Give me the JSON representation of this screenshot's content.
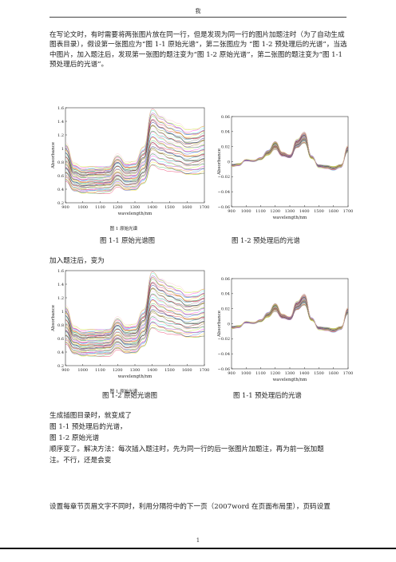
{
  "header": {
    "text": "我"
  },
  "intro": "在写论文时，有时需要将两张图片放在同一行，但是发现为同一行的图片加题注时（为了自动生成图表目录），假设第一张图应为“图 1-1 原始光谱”，第二张图应为 “图 1-2 预处理后的光谱”，当选中图片，加入题注后，发现第一张图的题注变为“图 1-2 原始光谱”，第二张图的题注变为“图 1-1 预处理后的光谱”。",
  "fig1": {
    "left_caption": "图 1-1 原始光谱图",
    "right_caption": "图 1-2 预处理后的光谱",
    "left_inner_caption": "图 1   原始光谱"
  },
  "after_label": "加入题注后，变为",
  "fig2": {
    "left_caption": "图 1-2 原始光谱图",
    "right_caption": "图 1-1 预处理后的光谱",
    "left_inner_caption": "图 1   原始光谱"
  },
  "list": {
    "line1": "生成插图目录时，就变成了",
    "line2": "图 1-1 预处理后的光谱，",
    "line3": "图 1-2 原始光谱",
    "line4": "顺序变了。解决方法：每次插入题注时，先为同一行的后一张图片加题注，再为前一张加题",
    "line5": "注。不行，还是会变"
  },
  "bottom_para": "设置每章节页眉文字不同时，利用分隔符中的下一页（2007word 在页面布局里），页码设置",
  "footer": {
    "page_number": "1"
  },
  "chart_data": [
    {
      "type": "line",
      "title": "",
      "xlabel": "wavelength/nm",
      "ylabel": "Absorbance",
      "xlim": [
        900,
        1700
      ],
      "ylim": [
        0.2,
        1.6
      ],
      "xticks": [
        900,
        1000,
        1100,
        1200,
        1300,
        1400,
        1500,
        1600,
        1700
      ],
      "yticks": [
        0.2,
        0.4,
        0.6,
        0.8,
        1,
        1.2,
        1.4,
        1.6
      ],
      "series_count": 50,
      "x": [
        900,
        950,
        1000,
        1050,
        1100,
        1150,
        1200,
        1250,
        1300,
        1350,
        1400,
        1450,
        1500,
        1550,
        1600,
        1650,
        1700
      ],
      "representative": [
        0.78,
        0.56,
        0.52,
        0.53,
        0.53,
        0.54,
        0.66,
        0.57,
        0.58,
        0.74,
        1.16,
        1.08,
        1.02,
        0.98,
        0.92,
        0.93,
        0.97
      ],
      "spread_low": 0.66,
      "spread_high": 1.38
    },
    {
      "type": "line",
      "title": "",
      "xlabel": "wavelength/nm",
      "ylabel": "Absorbance",
      "xlim": [
        900,
        1700
      ],
      "ylim": [
        -0.06,
        0.06
      ],
      "xticks": [
        900,
        1000,
        1100,
        1200,
        1300,
        1400,
        1500,
        1600,
        1700
      ],
      "yticks": [
        -0.06,
        -0.04,
        -0.02,
        0,
        0.02,
        0.04,
        0.06
      ],
      "series_count": 50,
      "x": [
        900,
        950,
        1000,
        1050,
        1100,
        1150,
        1200,
        1250,
        1300,
        1350,
        1400,
        1450,
        1500,
        1550,
        1600,
        1650,
        1700
      ],
      "representative": [
        -0.005,
        -0.004,
        0.002,
        0.001,
        0.004,
        0.012,
        0.022,
        0.01,
        0.007,
        0.024,
        0.032,
        0.006,
        -0.006,
        -0.007,
        -0.009,
        -0.006,
        0.017
      ],
      "spread": 0.006
    }
  ]
}
